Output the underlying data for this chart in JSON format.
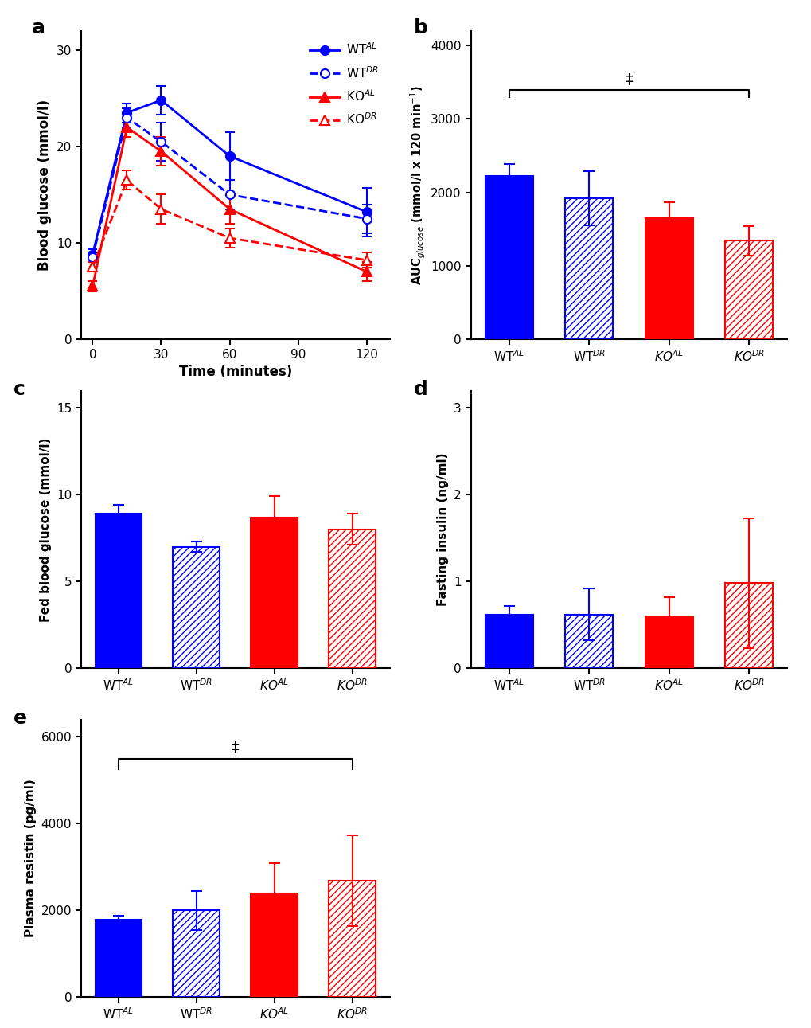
{
  "panel_a": {
    "title": "a",
    "xlabel": "Time (minutes)",
    "ylabel": "Blood glucose (mmol/l)",
    "xlim": [
      -5,
      130
    ],
    "ylim": [
      0,
      32
    ],
    "yticks": [
      0,
      10,
      20,
      30
    ],
    "xticks": [
      0,
      30,
      60,
      90,
      120
    ],
    "series": {
      "WTAL": {
        "x": [
          0,
          15,
          30,
          60,
          120
        ],
        "y": [
          8.8,
          23.5,
          24.8,
          19.0,
          13.2
        ],
        "yerr": [
          0.5,
          1.0,
          1.5,
          2.5,
          2.5
        ],
        "color": "#0000FF",
        "linestyle": "solid",
        "marker": "o",
        "markerfill": "#0000FF",
        "label": "WT$^{AL}$"
      },
      "WTDR": {
        "x": [
          0,
          15,
          30,
          60,
          120
        ],
        "y": [
          8.5,
          23.0,
          20.5,
          15.0,
          12.5
        ],
        "yerr": [
          0.5,
          1.0,
          2.0,
          1.5,
          1.5
        ],
        "color": "#0000FF",
        "linestyle": "dashed",
        "marker": "o",
        "markerfill": "white",
        "label": "WT$^{DR}$"
      },
      "KOAL": {
        "x": [
          0,
          15,
          30,
          60,
          120
        ],
        "y": [
          5.5,
          22.0,
          19.5,
          13.5,
          7.0
        ],
        "yerr": [
          0.5,
          1.0,
          1.5,
          1.5,
          1.0
        ],
        "color": "#FF0000",
        "linestyle": "solid",
        "marker": "^",
        "markerfill": "#FF0000",
        "label": "KO$^{AL}$"
      },
      "KODR": {
        "x": [
          0,
          15,
          30,
          60,
          120
        ],
        "y": [
          7.5,
          16.5,
          13.5,
          10.5,
          8.2
        ],
        "yerr": [
          0.5,
          1.0,
          1.5,
          1.0,
          0.8
        ],
        "color": "#FF0000",
        "linestyle": "dashed",
        "marker": "^",
        "markerfill": "white",
        "label": "KO$^{DR}$"
      }
    }
  },
  "panel_b": {
    "title": "b",
    "ylabel": "AUC$_{glucose}$ (mmol/l x 120 min$^{-1}$)",
    "ylim": [
      0,
      4200
    ],
    "yticks": [
      0,
      1000,
      2000,
      3000,
      4000
    ],
    "categories": [
      "WT$^{AL}$",
      "WT$^{DR}$",
      "$KO$$^{AL}$",
      "$KO$$^{DR}$"
    ],
    "values": [
      2220,
      1920,
      1650,
      1340
    ],
    "errors": [
      170,
      370,
      220,
      200
    ],
    "colors": [
      "#0000FF",
      "#0000FF",
      "#FF0000",
      "#FF0000"
    ],
    "hatches": [
      null,
      "////",
      null,
      "////"
    ],
    "sig_x1": 0,
    "sig_x2": 3,
    "sig_y": 3400,
    "sig_drop": 100,
    "sig_symbol": "‡"
  },
  "panel_c": {
    "title": "c",
    "ylabel": "Fed blood glucose (mmol/l)",
    "ylim": [
      0,
      16
    ],
    "yticks": [
      0,
      5,
      10,
      15
    ],
    "categories": [
      "WT$^{AL}$",
      "WT$^{DR}$",
      "$KO$$^{AL}$",
      "$KO$$^{DR}$"
    ],
    "values": [
      8.9,
      7.0,
      8.7,
      8.0
    ],
    "errors": [
      0.5,
      0.3,
      1.2,
      0.9
    ],
    "colors": [
      "#0000FF",
      "#0000FF",
      "#FF0000",
      "#FF0000"
    ],
    "hatches": [
      null,
      "////",
      null,
      "////"
    ]
  },
  "panel_d": {
    "title": "d",
    "ylabel": "Fasting insulin (ng/ml)",
    "ylim": [
      0,
      3.2
    ],
    "yticks": [
      0,
      1,
      2,
      3
    ],
    "categories": [
      "WT$^{AL}$",
      "WT$^{DR}$",
      "$KO$$^{AL}$",
      "$KO$$^{DR}$"
    ],
    "values": [
      0.62,
      0.62,
      0.6,
      0.98
    ],
    "errors": [
      0.1,
      0.3,
      0.22,
      0.75
    ],
    "colors": [
      "#0000FF",
      "#0000FF",
      "#FF0000",
      "#FF0000"
    ],
    "hatches": [
      null,
      "////",
      null,
      "////"
    ]
  },
  "panel_e": {
    "title": "e",
    "ylabel": "Plasma resistin (pg/ml)",
    "ylim": [
      0,
      6400
    ],
    "yticks": [
      0,
      2000,
      4000,
      6000
    ],
    "categories": [
      "WT$^{AL}$",
      "WT$^{DR}$",
      "$KO$$^{AL}$",
      "$KO$$^{DR}$"
    ],
    "values": [
      1780,
      2000,
      2390,
      2680
    ],
    "errors": [
      100,
      450,
      700,
      1050
    ],
    "colors": [
      "#0000FF",
      "#0000FF",
      "#FF0000",
      "#FF0000"
    ],
    "hatches": [
      null,
      "////",
      null,
      "////"
    ],
    "sig_x1": 0,
    "sig_x2": 3,
    "sig_y": 5500,
    "sig_drop": 250,
    "sig_symbol": "‡"
  },
  "blue": "#0000FF",
  "red": "#FF0000",
  "background": "#FFFFFF"
}
